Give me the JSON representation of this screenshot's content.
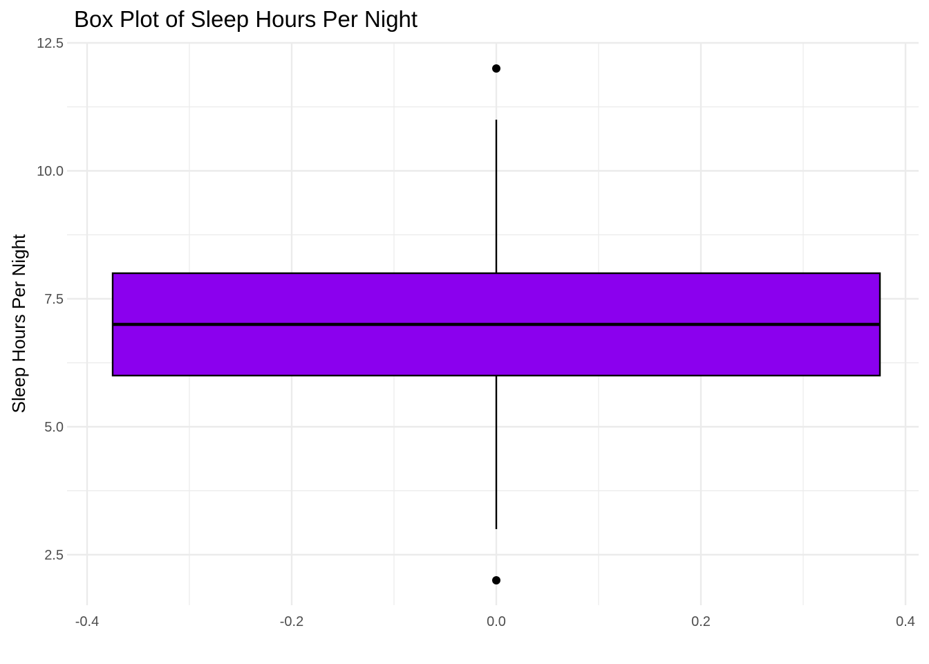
{
  "chart_data": {
    "type": "boxplot",
    "title": "Box Plot of Sleep Hours Per Night",
    "xlabel": "",
    "ylabel": "Sleep Hours Per Night",
    "xlim": [
      -0.4,
      0.4
    ],
    "ylim": [
      1.6,
      12.5
    ],
    "x_ticks": [
      "-0.4",
      "-0.2",
      "0.0",
      "0.2",
      "0.4"
    ],
    "y_ticks": [
      "2.5",
      "5.0",
      "7.5",
      "10.0",
      "12.5"
    ],
    "grid": true,
    "box": {
      "x_center": 0.0,
      "x_left": -0.375,
      "x_right": 0.375,
      "whisker_low": 3,
      "q1": 6,
      "median": 7,
      "q3": 8,
      "whisker_high": 11,
      "outliers": [
        12,
        2
      ],
      "fill_color": "#8b00ee",
      "stroke_color": "#000000"
    },
    "grid_color": "#ebebeb"
  }
}
